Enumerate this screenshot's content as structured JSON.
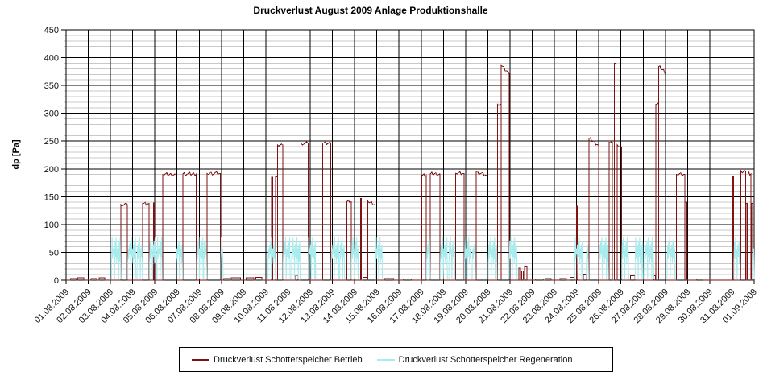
{
  "chart": {
    "title": "Druckverlust August 2009 Anlage Produktionshalle",
    "ylabel": "dp [Pa]"
  },
  "legend": {
    "betrieb": "Druckverlust Schotterspeicher Betrieb",
    "regeneration": "Druckverlust Schotterspeicher Regeneration"
  },
  "colors": {
    "betrieb": "#7f1212",
    "regeneration": "#a8ecee",
    "grid_minor": "#c9c9c9",
    "grid_major": "#000000",
    "axis": "#000000",
    "text": "#111111",
    "background": "#ffffff"
  },
  "chart_data": {
    "type": "line",
    "title": "Druckverlust August 2009 Anlage Produktionshalle",
    "xlabel": "",
    "ylabel": "dp [Pa]",
    "ylim": [
      0,
      450
    ],
    "y_ticks": [
      0,
      50,
      100,
      150,
      200,
      250,
      300,
      350,
      400,
      450
    ],
    "y_minor_step": 10,
    "grid": "on",
    "legend_position": "bottom",
    "x_unit": "days since 01.08.2009 00:00",
    "x_ticks": [
      "01.08.2009",
      "02.08.2009",
      "03.08.2009",
      "04.08.2009",
      "05.08.2009",
      "06.08.2009",
      "07.08.2009",
      "08.08.2009",
      "09.08.2009",
      "10.08.2009",
      "11.08.2009",
      "12.08.2009",
      "13.08.2009",
      "14.08.2009",
      "15.08.2009",
      "16.08.2009",
      "17.08.2009",
      "18.08.2009",
      "19.08.2009",
      "20.08.2009",
      "21.08.2009",
      "22.08.2009",
      "23.08.2009",
      "24.08.2009",
      "25.08.2009",
      "26.08.2009",
      "27.08.2009",
      "28.08.2009",
      "29.08.2009",
      "30.08.2009",
      "31.08.2009",
      "01.09.2009"
    ],
    "series": [
      {
        "name": "Druckverlust Schotterspeicher Betrieb",
        "color": "#7f1212",
        "unit": "Pa",
        "shape": "rectangular operating pulses, 0 Pa between pulses",
        "segments": [
          {
            "s": 0.2,
            "e": 0.45,
            "v": 3
          },
          {
            "s": 0.52,
            "e": 0.8,
            "v": 4
          },
          {
            "s": 1.12,
            "e": 1.38,
            "v": 3
          },
          {
            "s": 1.48,
            "e": 1.75,
            "v": 4
          },
          {
            "s": 2.47,
            "e": 2.76,
            "v": 136
          },
          {
            "s": 3.45,
            "e": 3.73,
            "v": 138
          },
          {
            "s": 3.93,
            "e": 3.97,
            "v": 139
          },
          {
            "s": 4.35,
            "e": 4.96,
            "v": 190
          },
          {
            "s": 5.26,
            "e": 5.87,
            "v": 191
          },
          {
            "s": 6.35,
            "e": 6.96,
            "v": 192
          },
          {
            "s": 7.1,
            "e": 7.38,
            "v": 3
          },
          {
            "s": 7.45,
            "e": 7.85,
            "v": 4
          },
          {
            "s": 8.12,
            "e": 8.45,
            "v": 4
          },
          {
            "s": 8.55,
            "e": 8.82,
            "v": 5
          },
          {
            "s": 9.26,
            "e": 9.31,
            "v": 185
          },
          {
            "s": 9.44,
            "e": 9.53,
            "v": 186
          },
          {
            "s": 9.53,
            "e": 9.76,
            "v": 243
          },
          {
            "s": 10.35,
            "e": 10.45,
            "v": 9
          },
          {
            "s": 10.59,
            "e": 10.9,
            "v": 246
          },
          {
            "s": 11.56,
            "e": 11.93,
            "v": 247
          },
          {
            "s": 12.65,
            "e": 12.85,
            "v": 141
          },
          {
            "s": 13.26,
            "e": 13.31,
            "v": 147
          },
          {
            "s": 13.38,
            "e": 13.56,
            "v": 5
          },
          {
            "s": 13.6,
            "e": 13.93,
            "v": 142,
            "v2": 136
          },
          {
            "s": 14.35,
            "e": 14.75,
            "v": 3
          },
          {
            "s": 15.2,
            "e": 15.55,
            "v": 2
          },
          {
            "s": 16.02,
            "e": 16.23,
            "v": 189
          },
          {
            "s": 16.41,
            "e": 16.84,
            "v": 191
          },
          {
            "s": 17.56,
            "e": 17.93,
            "v": 192
          },
          {
            "s": 18.47,
            "e": 18.96,
            "v": 195,
            "v2": 188
          },
          {
            "s": 19.44,
            "e": 19.6,
            "v": 316
          },
          {
            "s": 19.6,
            "e": 19.96,
            "v": 386,
            "v2": 371
          },
          {
            "s": 20.4,
            "e": 20.48,
            "v": 22
          },
          {
            "s": 20.52,
            "e": 20.6,
            "v": 17
          },
          {
            "s": 20.66,
            "e": 20.76,
            "v": 25
          },
          {
            "s": 21.15,
            "e": 21.5,
            "v": 2
          },
          {
            "s": 21.58,
            "e": 21.85,
            "v": 3
          },
          {
            "s": 22.25,
            "e": 22.55,
            "v": 3
          },
          {
            "s": 22.7,
            "e": 22.9,
            "v": 5
          },
          {
            "s": 22.99,
            "e": 23.04,
            "v": 133
          },
          {
            "s": 23.3,
            "e": 23.44,
            "v": 11
          },
          {
            "s": 23.56,
            "e": 23.99,
            "v": 255,
            "v2": 243
          },
          {
            "s": 24.47,
            "e": 24.62,
            "v": 248
          },
          {
            "s": 24.7,
            "e": 24.78,
            "v": 390
          },
          {
            "s": 24.82,
            "e": 25.02,
            "v": 244,
            "v2": 238
          },
          {
            "s": 25.42,
            "e": 25.62,
            "v": 8
          },
          {
            "s": 26.48,
            "e": 26.56,
            "v": 8
          },
          {
            "s": 26.57,
            "e": 26.7,
            "v": 316
          },
          {
            "s": 26.7,
            "e": 27.03,
            "v": 384,
            "v2": 373
          },
          {
            "s": 27.5,
            "e": 27.88,
            "v": 190
          },
          {
            "s": 27.88,
            "e": 27.97,
            "v": 140
          },
          {
            "s": 28.4,
            "e": 28.7,
            "v": 2
          },
          {
            "s": 30.03,
            "e": 30.08,
            "v": 187
          },
          {
            "s": 30.41,
            "e": 30.62,
            "v": 196
          },
          {
            "s": 30.64,
            "e": 30.7,
            "v": 138
          },
          {
            "s": 30.72,
            "e": 30.85,
            "v": 191
          },
          {
            "s": 30.87,
            "e": 30.92,
            "v": 138
          }
        ]
      },
      {
        "name": "Druckverlust Schotterspeicher Regeneration",
        "color": "#a8ecee",
        "unit": "Pa",
        "shape": "flat baseline with oscillating regeneration bursts",
        "baseline": 2,
        "burst_min": 30,
        "burst_max": 78,
        "bursts": [
          {
            "s": 2.05,
            "e": 2.46
          },
          {
            "s": 2.78,
            "e": 3.15
          },
          {
            "s": 3.2,
            "e": 3.44
          },
          {
            "s": 3.76,
            "e": 4.08
          },
          {
            "s": 4.1,
            "e": 4.33
          },
          {
            "s": 4.97,
            "e": 5.25
          },
          {
            "s": 5.88,
            "e": 6.18
          },
          {
            "s": 6.2,
            "e": 6.34
          },
          {
            "s": 6.97,
            "e": 7.08
          },
          {
            "s": 9.1,
            "e": 9.43
          },
          {
            "s": 9.78,
            "e": 10.1
          },
          {
            "s": 10.16,
            "e": 10.55
          },
          {
            "s": 10.91,
            "e": 11.25
          },
          {
            "s": 11.95,
            "e": 12.3
          },
          {
            "s": 12.33,
            "e": 12.55
          },
          {
            "s": 12.86,
            "e": 13.2
          },
          {
            "s": 13.95,
            "e": 14.25
          },
          {
            "s": 16.24,
            "e": 16.4
          },
          {
            "s": 16.86,
            "e": 17.18
          },
          {
            "s": 17.25,
            "e": 17.52
          },
          {
            "s": 17.95,
            "e": 18.25
          },
          {
            "s": 18.3,
            "e": 18.45
          },
          {
            "s": 19.02,
            "e": 19.42
          },
          {
            "s": 19.97,
            "e": 20.32
          },
          {
            "s": 22.92,
            "e": 23.28
          },
          {
            "s": 23.44,
            "e": 23.54
          },
          {
            "s": 24.02,
            "e": 24.44
          },
          {
            "s": 25.04,
            "e": 25.35
          },
          {
            "s": 25.64,
            "e": 26.0
          },
          {
            "s": 26.06,
            "e": 26.48
          },
          {
            "s": 27.08,
            "e": 27.45
          },
          {
            "s": 30.09,
            "e": 30.38
          },
          {
            "s": 30.93,
            "e": 31.0
          }
        ]
      }
    ]
  }
}
